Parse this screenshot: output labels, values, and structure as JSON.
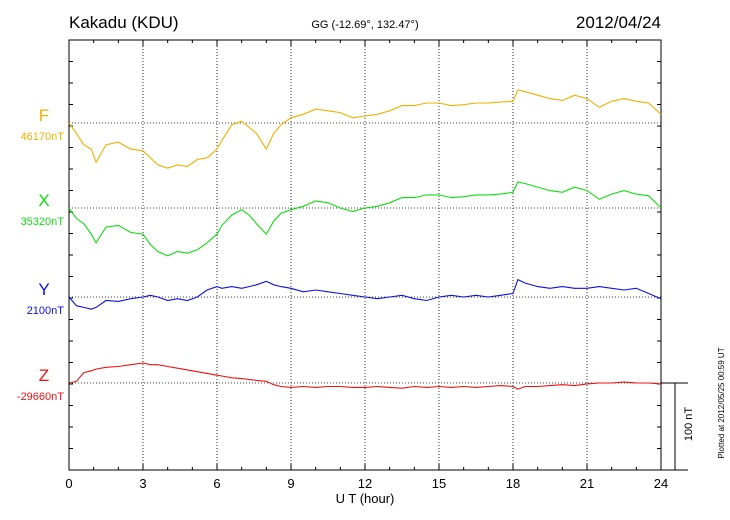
{
  "header": {
    "title": "Kakadu (KDU)",
    "coords": "GG (-12.69°, 132.47°)",
    "date": "2012/04/24"
  },
  "side_note": "Plotted at 2012/05/25 00:59 UT",
  "scale_label": "100 nT",
  "colors": {
    "F": "#f0b000",
    "X": "#10dd10",
    "Y": "#1010dd",
    "Z": "#ee1010"
  },
  "chart_data": {
    "type": "line",
    "title": "Kakadu (KDU)",
    "xlabel": "U T (hour)",
    "ylabel": "",
    "xlim": [
      0,
      24
    ],
    "xticks": [
      "0",
      "3",
      "6",
      "9",
      "12",
      "15",
      "18",
      "21",
      "24"
    ],
    "grid": true,
    "scale_bar_nT": 100,
    "series": [
      {
        "name": "F",
        "baseline_label": "46170nT",
        "baseline_nT": 46170,
        "x": [
          0,
          0.3,
          0.6,
          0.9,
          1.1,
          1.5,
          2.0,
          2.5,
          3.0,
          3.3,
          3.6,
          4.0,
          4.4,
          4.8,
          5.2,
          5.6,
          6.0,
          6.2,
          6.6,
          7.0,
          7.3,
          7.6,
          8.0,
          8.3,
          8.6,
          9.0,
          9.5,
          10.0,
          10.5,
          11.0,
          11.5,
          12.0,
          12.5,
          13.0,
          13.5,
          14.0,
          14.5,
          15.0,
          15.5,
          16.0,
          16.5,
          17.0,
          17.5,
          18.0,
          18.2,
          18.5,
          19.0,
          19.5,
          20.0,
          20.5,
          21.0,
          21.5,
          22.0,
          22.5,
          23.0,
          23.5,
          24.0
        ],
        "y": [
          46170,
          46158,
          46145,
          46140,
          46125,
          46145,
          46148,
          46140,
          46138,
          46130,
          46122,
          46118,
          46122,
          46120,
          46128,
          46130,
          46140,
          46150,
          46168,
          46172,
          46165,
          46158,
          46140,
          46158,
          46168,
          46176,
          46180,
          46186,
          46184,
          46182,
          46176,
          46178,
          46180,
          46184,
          46190,
          46190,
          46193,
          46193,
          46190,
          46191,
          46193,
          46193,
          46194,
          46195,
          46208,
          46206,
          46202,
          46198,
          46196,
          46202,
          46198,
          46188,
          46195,
          46198,
          46195,
          46193,
          46180
        ]
      },
      {
        "name": "X",
        "baseline_label": "35320nT",
        "baseline_nT": 35320,
        "x": [
          0,
          0.3,
          0.6,
          0.9,
          1.1,
          1.5,
          2.0,
          2.5,
          3.0,
          3.3,
          3.6,
          4.0,
          4.4,
          4.8,
          5.2,
          5.6,
          6.0,
          6.2,
          6.6,
          7.0,
          7.3,
          7.6,
          8.0,
          8.3,
          8.6,
          9.0,
          9.5,
          10.0,
          10.5,
          11.0,
          11.5,
          12.0,
          12.5,
          13.0,
          13.5,
          14.0,
          14.5,
          15.0,
          15.5,
          16.0,
          16.5,
          17.0,
          17.5,
          18.0,
          18.2,
          18.5,
          19.0,
          19.5,
          20.0,
          20.5,
          21.0,
          21.5,
          22.0,
          22.5,
          23.0,
          23.5,
          24.0
        ],
        "y": [
          35320,
          35308,
          35302,
          35290,
          35280,
          35298,
          35300,
          35292,
          35290,
          35278,
          35270,
          35265,
          35270,
          35268,
          35272,
          35280,
          35290,
          35300,
          35312,
          35318,
          35312,
          35302,
          35290,
          35305,
          35314,
          35318,
          35322,
          35328,
          35326,
          35320,
          35316,
          35320,
          35322,
          35326,
          35332,
          35332,
          35335,
          35335,
          35332,
          35333,
          35335,
          35335,
          35336,
          35338,
          35350,
          35348,
          35344,
          35340,
          35338,
          35344,
          35340,
          35330,
          35336,
          35340,
          35336,
          35334,
          35320
        ]
      },
      {
        "name": "Y",
        "baseline_label": "2100nT",
        "baseline_nT": 2100,
        "x": [
          0,
          0.3,
          0.6,
          0.9,
          1.1,
          1.5,
          2.0,
          2.5,
          3.0,
          3.3,
          3.6,
          4.0,
          4.4,
          4.8,
          5.2,
          5.6,
          6.0,
          6.2,
          6.6,
          7.0,
          7.3,
          7.6,
          8.0,
          8.3,
          8.6,
          9.0,
          9.5,
          10.0,
          10.5,
          11.0,
          11.5,
          12.0,
          12.5,
          13.0,
          13.5,
          14.0,
          14.5,
          15.0,
          15.5,
          16.0,
          16.5,
          17.0,
          17.5,
          18.0,
          18.2,
          18.5,
          19.0,
          19.5,
          20.0,
          20.5,
          21.0,
          21.5,
          22.0,
          22.5,
          23.0,
          23.5,
          24.0
        ],
        "y": [
          2100,
          2090,
          2088,
          2086,
          2088,
          2096,
          2095,
          2098,
          2100,
          2102,
          2100,
          2096,
          2098,
          2096,
          2100,
          2108,
          2112,
          2110,
          2112,
          2110,
          2112,
          2114,
          2118,
          2114,
          2112,
          2110,
          2106,
          2108,
          2106,
          2104,
          2102,
          2100,
          2098,
          2100,
          2102,
          2098,
          2096,
          2100,
          2102,
          2100,
          2102,
          2100,
          2102,
          2104,
          2120,
          2116,
          2112,
          2110,
          2112,
          2110,
          2110,
          2112,
          2110,
          2108,
          2110,
          2104,
          2098
        ]
      },
      {
        "name": "Z",
        "baseline_label": "-29660nT",
        "baseline_nT": -29660,
        "x": [
          0,
          0.3,
          0.6,
          0.9,
          1.1,
          1.5,
          2.0,
          2.5,
          3.0,
          3.3,
          3.6,
          4.0,
          4.4,
          4.8,
          5.2,
          5.6,
          6.0,
          6.2,
          6.6,
          7.0,
          7.3,
          7.6,
          8.0,
          8.3,
          8.6,
          9.0,
          9.5,
          10.0,
          10.5,
          11.0,
          11.5,
          12.0,
          12.5,
          13.0,
          13.5,
          14.0,
          14.5,
          15.0,
          15.5,
          16.0,
          16.5,
          17.0,
          17.5,
          18.0,
          18.2,
          18.5,
          19.0,
          19.5,
          20.0,
          20.5,
          21.0,
          21.5,
          22.0,
          22.5,
          23.0,
          23.5,
          24.0
        ],
        "y": [
          -29660,
          -29658,
          -29648,
          -29646,
          -29644,
          -29642,
          -29641,
          -29639,
          -29637,
          -29639,
          -29639,
          -29641,
          -29643,
          -29645,
          -29647,
          -29649,
          -29651,
          -29652,
          -29654,
          -29655,
          -29656,
          -29657,
          -29658,
          -29662,
          -29664,
          -29665,
          -29664,
          -29665,
          -29664,
          -29664,
          -29665,
          -29665,
          -29664,
          -29665,
          -29666,
          -29664,
          -29665,
          -29664,
          -29665,
          -29664,
          -29665,
          -29664,
          -29663,
          -29664,
          -29667,
          -29664,
          -29664,
          -29663,
          -29662,
          -29663,
          -29661,
          -29660,
          -29660,
          -29659,
          -29660,
          -29660,
          -29661
        ]
      }
    ]
  }
}
